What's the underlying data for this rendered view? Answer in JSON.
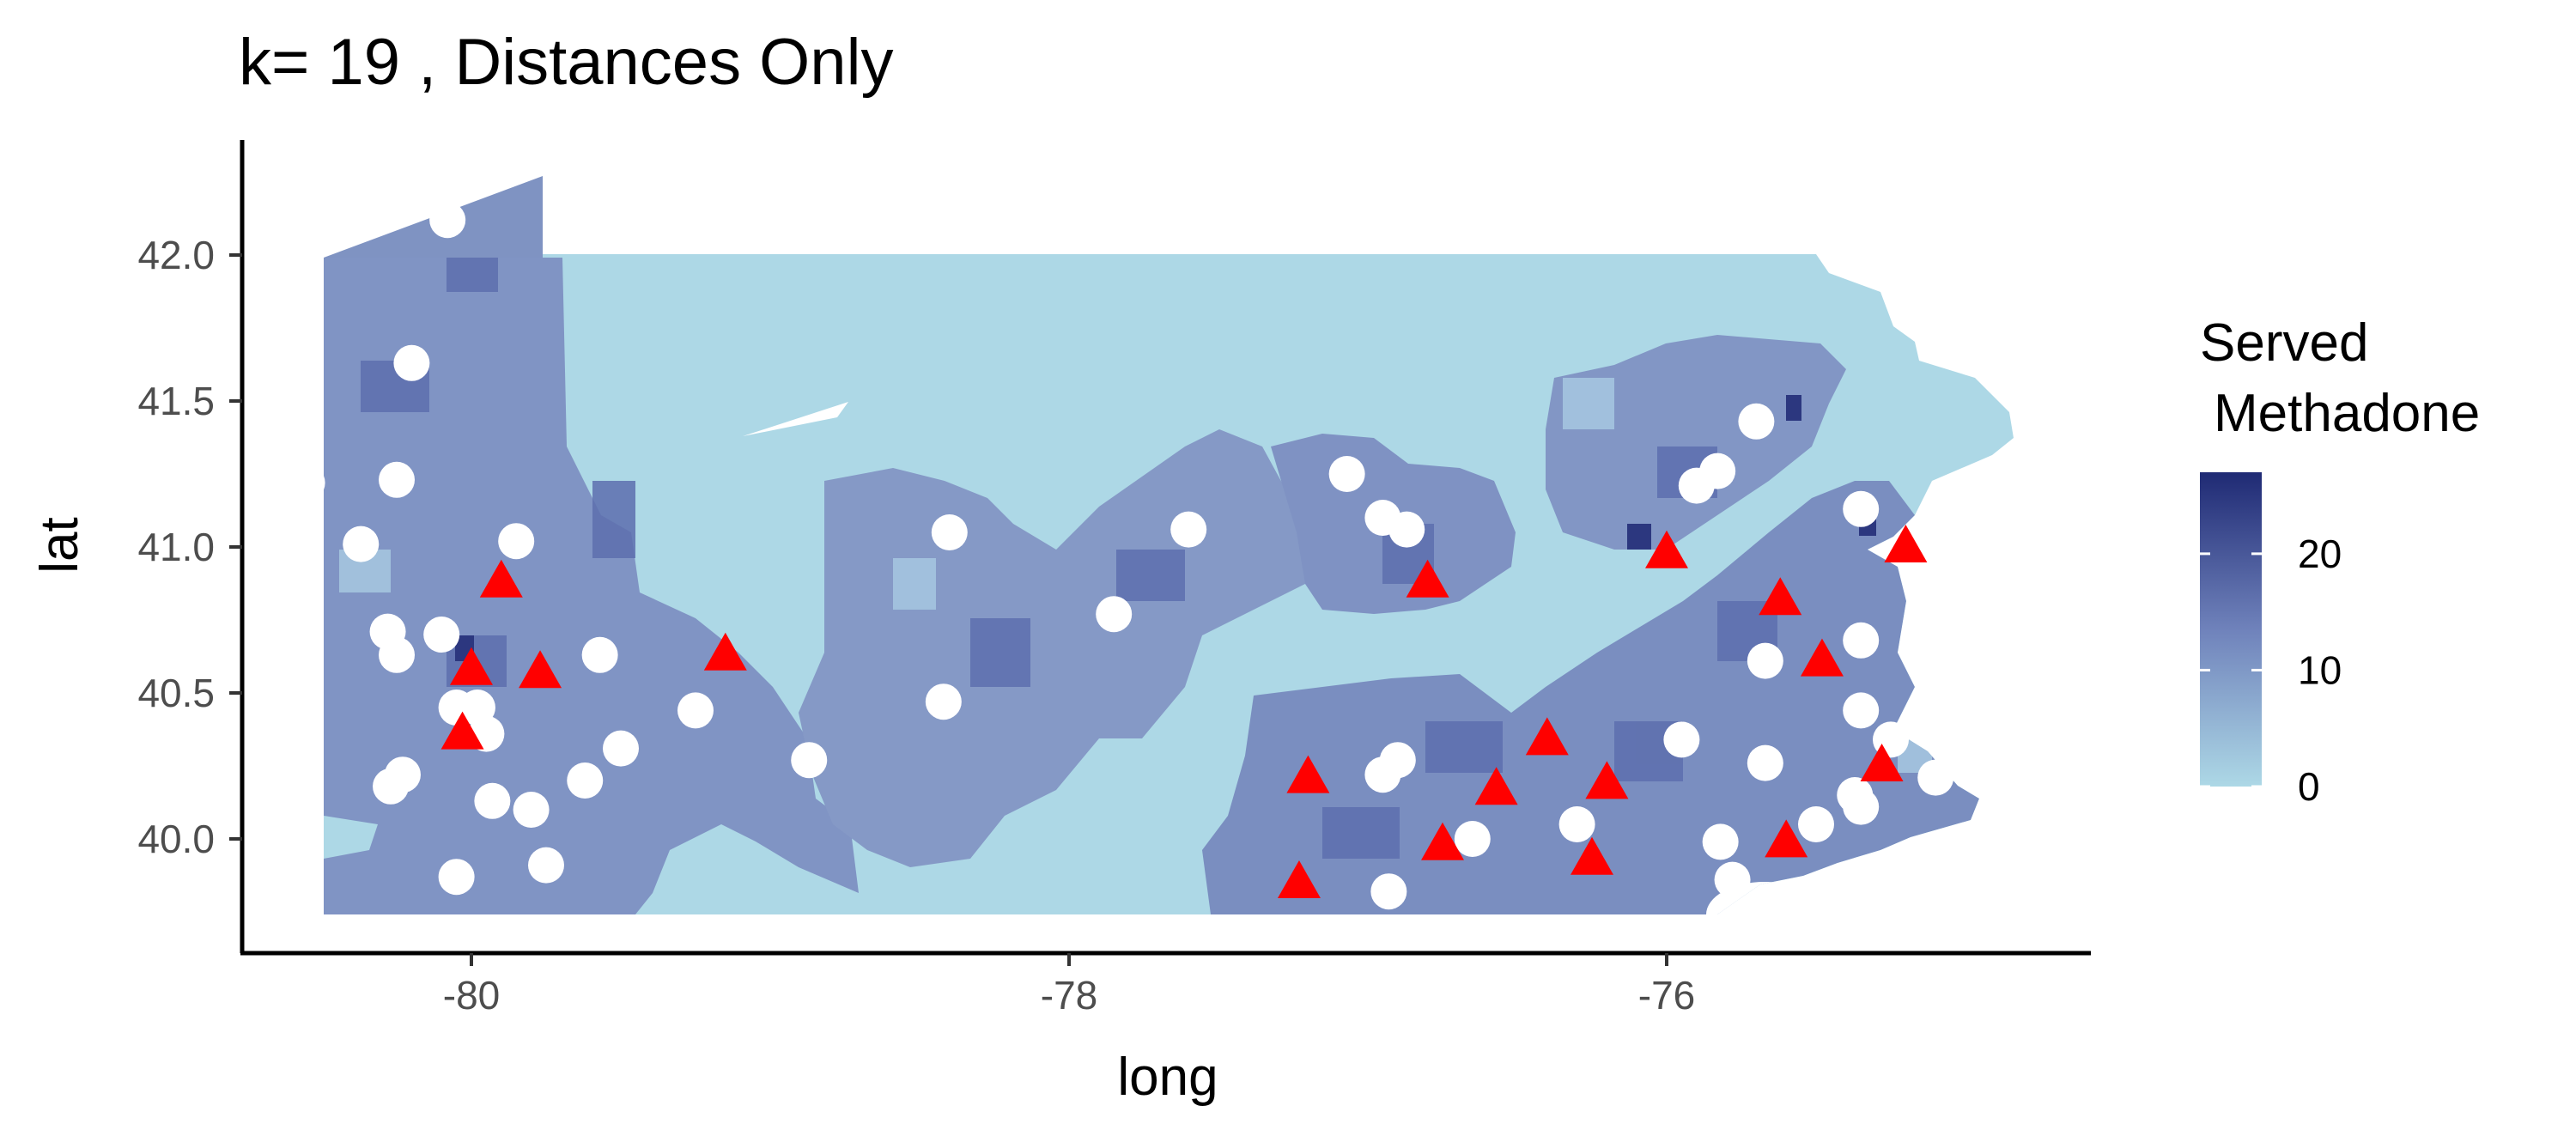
{
  "chart_data": {
    "type": "map",
    "title": "k= 19 , Distances Only",
    "xlabel": "long",
    "ylabel": "lat",
    "xlim": [
      -80.85,
      -74.45
    ],
    "ylim": [
      39.6,
      42.4
    ],
    "x_ticks": [
      {
        "value": -80,
        "label": "-80"
      },
      {
        "value": -78,
        "label": "-78"
      },
      {
        "value": -76,
        "label": "-76"
      }
    ],
    "y_ticks": [
      {
        "value": 40.0,
        "label": "40.0"
      },
      {
        "value": 40.5,
        "label": "40.5"
      },
      {
        "value": 41.0,
        "label": "41.0"
      },
      {
        "value": 41.5,
        "label": "41.5"
      },
      {
        "value": 42.0,
        "label": "42.0"
      }
    ],
    "legend": {
      "title_line1": "Served",
      "title_line2": "Methadone",
      "position": "right",
      "min": 0,
      "max": 27,
      "low_color": "#add8e6",
      "high_color": "#1f2a74",
      "ticks": [
        {
          "value": 0,
          "label": "0"
        },
        {
          "value": 10,
          "label": "10"
        },
        {
          "value": 20,
          "label": "20"
        }
      ]
    },
    "base_fill": "#add8e6",
    "shaded_fill": "#8096c2",
    "triangle_color": "#ff0000",
    "circle_color": "#ffffff",
    "triangles": [
      [
        -79.9,
        40.88
      ],
      [
        -80.0,
        40.58
      ],
      [
        -79.77,
        40.57
      ],
      [
        -80.03,
        40.36
      ],
      [
        -79.15,
        40.63
      ],
      [
        -76.0,
        40.98
      ],
      [
        -75.2,
        41.0
      ],
      [
        -76.8,
        40.88
      ],
      [
        -75.62,
        40.82
      ],
      [
        -75.48,
        40.61
      ],
      [
        -76.4,
        40.34
      ],
      [
        -75.28,
        40.25
      ],
      [
        -77.2,
        40.21
      ],
      [
        -76.57,
        40.17
      ],
      [
        -76.2,
        40.19
      ],
      [
        -76.75,
        39.98
      ],
      [
        -76.25,
        39.93
      ],
      [
        -75.6,
        39.99
      ],
      [
        -77.23,
        39.85
      ]
    ],
    "circles": [
      [
        -80.08,
        42.12
      ],
      [
        -80.2,
        41.63
      ],
      [
        -80.55,
        41.22
      ],
      [
        -80.25,
        41.23
      ],
      [
        -80.37,
        41.01
      ],
      [
        -79.85,
        41.02
      ],
      [
        -80.28,
        40.71
      ],
      [
        -80.1,
        40.7
      ],
      [
        -80.25,
        40.63
      ],
      [
        -79.57,
        40.63
      ],
      [
        -80.05,
        40.45
      ],
      [
        -79.98,
        40.45
      ],
      [
        -79.95,
        40.36
      ],
      [
        -80.27,
        40.18
      ],
      [
        -80.23,
        40.22
      ],
      [
        -79.5,
        40.31
      ],
      [
        -79.62,
        40.2
      ],
      [
        -79.93,
        40.13
      ],
      [
        -79.8,
        40.1
      ],
      [
        -79.75,
        39.91
      ],
      [
        -80.05,
        39.87
      ],
      [
        -79.25,
        40.44
      ],
      [
        -78.87,
        40.27
      ],
      [
        -78.42,
        40.47
      ],
      [
        -78.4,
        41.05
      ],
      [
        -77.6,
        41.06
      ],
      [
        -77.85,
        40.77
      ],
      [
        -77.07,
        41.25
      ],
      [
        -76.95,
        41.1
      ],
      [
        -76.87,
        41.06
      ],
      [
        -75.7,
        41.43
      ],
      [
        -75.83,
        41.26
      ],
      [
        -75.9,
        41.21
      ],
      [
        -75.35,
        41.13
      ],
      [
        -75.35,
        40.68
      ],
      [
        -75.67,
        40.61
      ],
      [
        -75.35,
        40.44
      ],
      [
        -75.25,
        40.34
      ],
      [
        -75.1,
        40.21
      ],
      [
        -74.87,
        40.2
      ],
      [
        -75.67,
        40.26
      ],
      [
        -75.37,
        40.15
      ],
      [
        -75.35,
        40.11
      ],
      [
        -75.5,
        40.05
      ],
      [
        -75.95,
        40.34
      ],
      [
        -76.3,
        40.05
      ],
      [
        -76.65,
        40.0
      ],
      [
        -76.9,
        40.27
      ],
      [
        -76.95,
        40.22
      ],
      [
        -76.93,
        39.82
      ],
      [
        -75.82,
        39.99
      ],
      [
        -75.78,
        39.86
      ],
      [
        -75.35,
        39.86
      ]
    ]
  }
}
